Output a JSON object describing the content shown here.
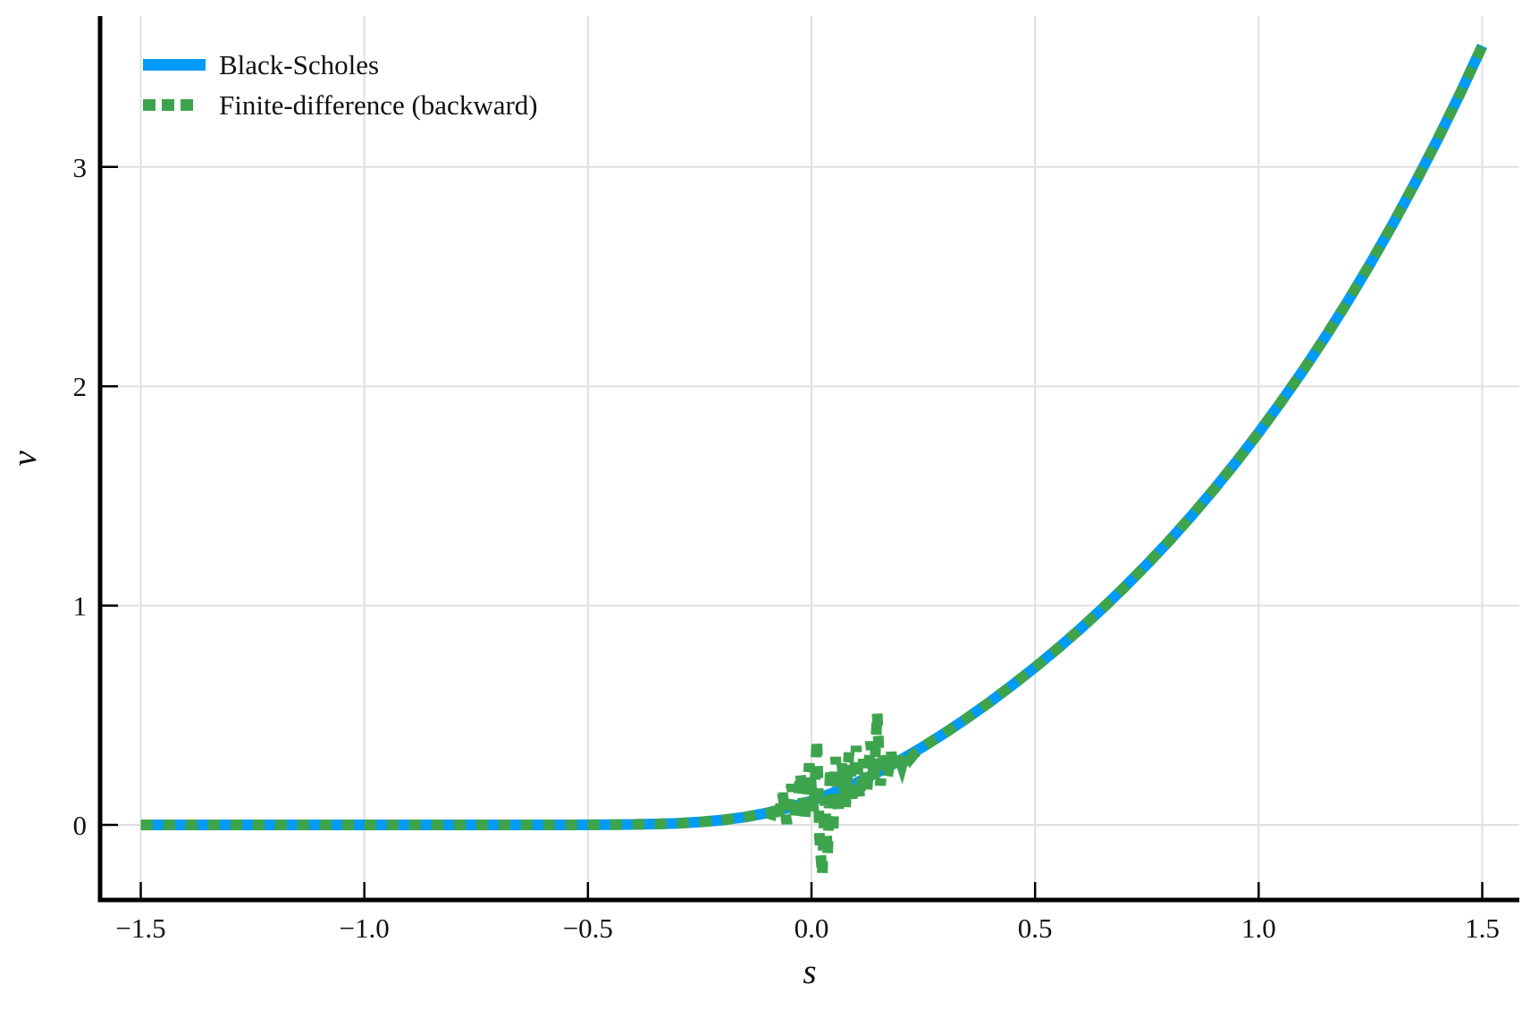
{
  "figure": {
    "background": "#ffffff"
  },
  "chart_data": {
    "type": "line",
    "title": "",
    "xlabel": "s",
    "ylabel": "v",
    "xlim": [
      -1.59,
      1.58
    ],
    "ylim": [
      -0.34,
      3.69
    ],
    "grid": true,
    "legend_position": "top-left",
    "x_ticks": {
      "values": [
        -1.5,
        -1.0,
        -0.5,
        0.0,
        0.5,
        1.0,
        1.5
      ],
      "labels": [
        "−1.5",
        "−1.0",
        "−0.5",
        "0.0",
        "0.5",
        "1.0",
        "1.5"
      ]
    },
    "y_ticks": {
      "values": [
        0,
        1,
        2,
        3
      ],
      "labels": [
        "0",
        "1",
        "2",
        "3"
      ]
    },
    "colors": {
      "grid": "#e0e0e0",
      "axis": "#000000",
      "text": "#111111"
    },
    "series": [
      {
        "name": "Black-Scholes",
        "color": "#009af9",
        "line_style": "solid",
        "line_width": 12,
        "points": [
          [
            -1.5,
            0
          ],
          [
            -1.4,
            0
          ],
          [
            -1.3,
            0
          ],
          [
            -1.2,
            0
          ],
          [
            -1.1,
            0
          ],
          [
            -1.0,
            0
          ],
          [
            -0.9,
            0
          ],
          [
            -0.8,
            0
          ],
          [
            -0.7,
            0.0001
          ],
          [
            -0.6,
            0.0001
          ],
          [
            -0.55,
            0.0002
          ],
          [
            -0.5,
            0.0004
          ],
          [
            -0.45,
            0.0009
          ],
          [
            -0.4,
            0.002
          ],
          [
            -0.35,
            0.0039
          ],
          [
            -0.3,
            0.0074
          ],
          [
            -0.25,
            0.0131
          ],
          [
            -0.2,
            0.0222
          ],
          [
            -0.15,
            0.0354
          ],
          [
            -0.1,
            0.054
          ],
          [
            -0.05,
            0.0785
          ],
          [
            0.0,
            0.1097
          ],
          [
            0.05,
            0.1476
          ],
          [
            0.1,
            0.1916
          ],
          [
            0.15,
            0.2415
          ],
          [
            0.2,
            0.2969
          ],
          [
            0.25,
            0.3569
          ],
          [
            0.3,
            0.4213
          ],
          [
            0.35,
            0.4898
          ],
          [
            0.4,
            0.5621
          ],
          [
            0.45,
            0.6384
          ],
          [
            0.5,
            0.7188
          ],
          [
            0.55,
            0.8033
          ],
          [
            0.6,
            0.892
          ],
          [
            0.65,
            0.9855
          ],
          [
            0.7,
            1.0838
          ],
          [
            0.75,
            1.187
          ],
          [
            0.8,
            1.2955
          ],
          [
            0.85,
            1.4096
          ],
          [
            0.9,
            1.5296
          ],
          [
            0.95,
            1.6557
          ],
          [
            1.0,
            1.7883
          ],
          [
            1.05,
            1.9277
          ],
          [
            1.1,
            2.0742
          ],
          [
            1.15,
            2.2282
          ],
          [
            1.2,
            2.3901
          ],
          [
            1.25,
            2.5603
          ],
          [
            1.3,
            2.7393
          ],
          [
            1.35,
            2.9274
          ],
          [
            1.4,
            3.1252
          ],
          [
            1.45,
            3.3331
          ],
          [
            1.5,
            3.5517
          ]
        ]
      },
      {
        "name": "Finite-difference (backward)",
        "color": "#3da44d",
        "line_style": "dashed",
        "line_width": 12,
        "points": [
          [
            -1.5,
            0
          ],
          [
            -1.4,
            0
          ],
          [
            -1.3,
            0
          ],
          [
            -1.2,
            0
          ],
          [
            -1.1,
            0
          ],
          [
            -1.0,
            0
          ],
          [
            -0.9,
            0
          ],
          [
            -0.8,
            0
          ],
          [
            -0.7,
            0.0001
          ],
          [
            -0.6,
            0.0001
          ],
          [
            -0.55,
            0.0002
          ],
          [
            -0.5,
            0.0004
          ],
          [
            -0.45,
            0.0009
          ],
          [
            -0.4,
            0.002
          ],
          [
            -0.35,
            0.0039
          ],
          [
            -0.3,
            0.0074
          ],
          [
            -0.25,
            0.0131
          ],
          [
            -0.2,
            0.0222
          ],
          [
            -0.15,
            0.0354
          ],
          [
            -0.12,
            0.0462
          ],
          [
            -0.1,
            0.054
          ],
          [
            -0.09,
            0.048
          ],
          [
            -0.085,
            0.105
          ],
          [
            -0.075,
            0.015
          ],
          [
            -0.065,
            0.145
          ],
          [
            -0.055,
            0.005
          ],
          [
            -0.045,
            0.185
          ],
          [
            -0.035,
            0.022
          ],
          [
            -0.025,
            0.235
          ],
          [
            -0.015,
            0.03
          ],
          [
            -0.005,
            0.28
          ],
          [
            0.005,
            0.06
          ],
          [
            0.012,
            0.39
          ],
          [
            0.018,
            -0.06
          ],
          [
            0.024,
            -0.23
          ],
          [
            0.03,
            0.12
          ],
          [
            0.036,
            -0.14
          ],
          [
            0.042,
            0.26
          ],
          [
            0.048,
            -0.04
          ],
          [
            0.054,
            0.31
          ],
          [
            0.06,
            0.05
          ],
          [
            0.068,
            0.28
          ],
          [
            0.076,
            0.08
          ],
          [
            0.084,
            0.33
          ],
          [
            0.092,
            0.1
          ],
          [
            0.1,
            0.36
          ],
          [
            0.108,
            0.12
          ],
          [
            0.116,
            0.3
          ],
          [
            0.124,
            0.15
          ],
          [
            0.132,
            0.38
          ],
          [
            0.14,
            0.2
          ],
          [
            0.147,
            0.51
          ],
          [
            0.154,
            0.18
          ],
          [
            0.162,
            0.34
          ],
          [
            0.17,
            0.22
          ],
          [
            0.178,
            0.33
          ],
          [
            0.186,
            0.25
          ],
          [
            0.194,
            0.32
          ],
          [
            0.202,
            0.27
          ],
          [
            0.21,
            0.33
          ],
          [
            0.22,
            0.3
          ],
          [
            0.23,
            0.325
          ],
          [
            0.25,
            0.3569
          ],
          [
            0.3,
            0.4213
          ],
          [
            0.35,
            0.4898
          ],
          [
            0.4,
            0.5621
          ],
          [
            0.45,
            0.6384
          ],
          [
            0.5,
            0.7188
          ],
          [
            0.55,
            0.8033
          ],
          [
            0.6,
            0.892
          ],
          [
            0.65,
            0.9855
          ],
          [
            0.7,
            1.0838
          ],
          [
            0.75,
            1.187
          ],
          [
            0.8,
            1.2955
          ],
          [
            0.85,
            1.4096
          ],
          [
            0.9,
            1.5296
          ],
          [
            0.95,
            1.6557
          ],
          [
            1.0,
            1.7883
          ],
          [
            1.05,
            1.9277
          ],
          [
            1.1,
            2.0742
          ],
          [
            1.15,
            2.2282
          ],
          [
            1.2,
            2.3901
          ],
          [
            1.25,
            2.5603
          ],
          [
            1.3,
            2.7393
          ],
          [
            1.35,
            2.9274
          ],
          [
            1.4,
            3.1252
          ],
          [
            1.45,
            3.3331
          ],
          [
            1.5,
            3.5517
          ]
        ]
      }
    ]
  }
}
